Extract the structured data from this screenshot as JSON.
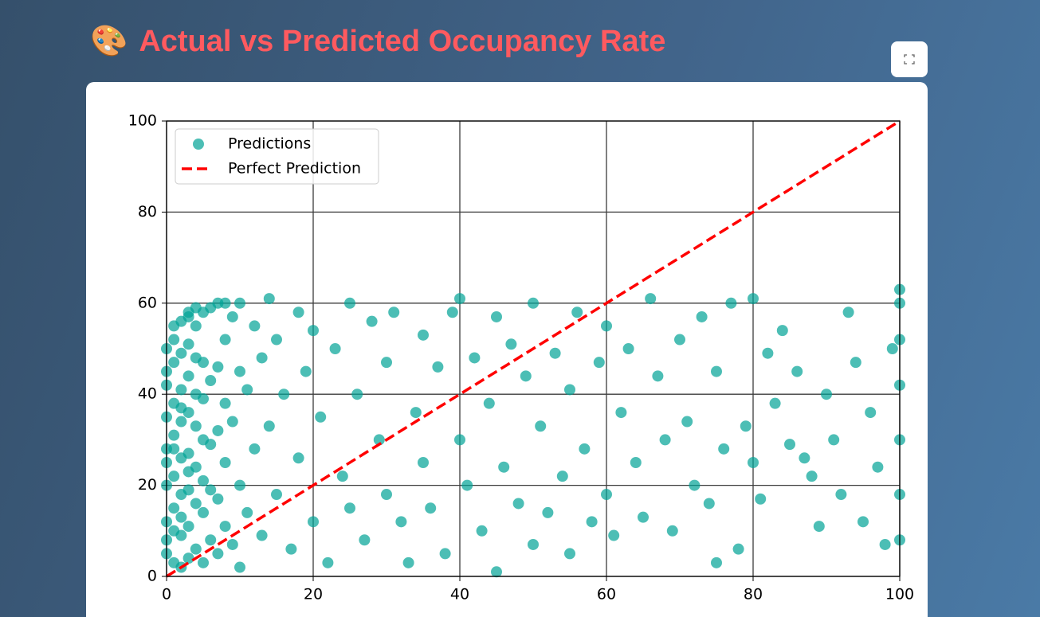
{
  "header": {
    "icon": "🎨",
    "title": "Actual vs Predicted Occupancy Rate"
  },
  "chart_data": {
    "type": "scatter",
    "xlim": [
      0,
      100
    ],
    "ylim": [
      0,
      100
    ],
    "xticks": [
      0,
      20,
      40,
      60,
      80,
      100
    ],
    "yticks": [
      0,
      20,
      40,
      60,
      80,
      100
    ],
    "grid": true,
    "legend": "upper left",
    "series": [
      {
        "name": "Predictions",
        "type": "scatter",
        "color": "#00a396",
        "x": [
          0,
          0,
          0,
          0,
          0,
          0,
          0,
          0,
          0,
          0,
          1,
          1,
          1,
          1,
          1,
          1,
          1,
          1,
          1,
          1,
          2,
          2,
          2,
          2,
          2,
          2,
          2,
          2,
          2,
          2,
          3,
          3,
          3,
          3,
          3,
          3,
          3,
          3,
          3,
          3,
          4,
          4,
          4,
          4,
          4,
          4,
          4,
          4,
          5,
          5,
          5,
          5,
          5,
          5,
          5,
          6,
          6,
          6,
          6,
          6,
          7,
          7,
          7,
          7,
          7,
          8,
          8,
          8,
          8,
          8,
          9,
          9,
          9,
          10,
          10,
          10,
          10,
          11,
          11,
          12,
          12,
          13,
          13,
          14,
          14,
          15,
          15,
          16,
          17,
          18,
          18,
          19,
          20,
          20,
          21,
          22,
          23,
          24,
          25,
          25,
          26,
          27,
          28,
          29,
          30,
          30,
          31,
          32,
          33,
          34,
          35,
          35,
          36,
          37,
          38,
          39,
          40,
          40,
          41,
          42,
          43,
          44,
          45,
          45,
          46,
          47,
          48,
          49,
          50,
          50,
          51,
          52,
          53,
          54,
          55,
          55,
          56,
          57,
          58,
          59,
          60,
          60,
          61,
          62,
          63,
          64,
          65,
          66,
          67,
          68,
          69,
          70,
          71,
          72,
          73,
          74,
          75,
          75,
          76,
          77,
          78,
          79,
          80,
          80,
          81,
          82,
          83,
          84,
          85,
          86,
          87,
          88,
          89,
          90,
          91,
          92,
          93,
          94,
          95,
          96,
          97,
          98,
          99,
          100,
          100,
          100,
          100,
          100,
          100,
          100
        ],
        "y": [
          5,
          12,
          20,
          28,
          35,
          42,
          50,
          8,
          25,
          45,
          3,
          15,
          22,
          31,
          38,
          47,
          52,
          10,
          28,
          55,
          2,
          9,
          18,
          26,
          34,
          41,
          49,
          56,
          13,
          37,
          4,
          11,
          19,
          27,
          36,
          44,
          51,
          57,
          23,
          58,
          6,
          16,
          24,
          33,
          40,
          48,
          55,
          59,
          3,
          14,
          21,
          30,
          39,
          47,
          58,
          8,
          19,
          29,
          43,
          59,
          5,
          17,
          32,
          46,
          60,
          11,
          25,
          38,
          52,
          60,
          7,
          34,
          57,
          2,
          20,
          45,
          60,
          14,
          41,
          28,
          55,
          9,
          48,
          33,
          61,
          18,
          52,
          40,
          6,
          58,
          26,
          45,
          12,
          54,
          35,
          3,
          50,
          22,
          15,
          60,
          40,
          8,
          56,
          30,
          18,
          47,
          58,
          12,
          3,
          36,
          25,
          53,
          15,
          46,
          5,
          58,
          30,
          61,
          20,
          48,
          10,
          38,
          1,
          57,
          24,
          51,
          16,
          44,
          7,
          60,
          33,
          14,
          49,
          22,
          5,
          41,
          58,
          28,
          12,
          47,
          18,
          55,
          9,
          36,
          50,
          25,
          13,
          61,
          44,
          30,
          10,
          52,
          34,
          20,
          57,
          16,
          3,
          45,
          28,
          60,
          6,
          33,
          25,
          61,
          17,
          49,
          38,
          54,
          29,
          45,
          26,
          22,
          11,
          40,
          30,
          18,
          58,
          47,
          12,
          36,
          24,
          7,
          50,
          8,
          18,
          30,
          42,
          52,
          60,
          63
        ]
      },
      {
        "name": "Perfect Prediction",
        "type": "line",
        "color": "#ff0000",
        "dash": true,
        "x": [
          0,
          100
        ],
        "y": [
          0,
          100
        ]
      }
    ]
  }
}
